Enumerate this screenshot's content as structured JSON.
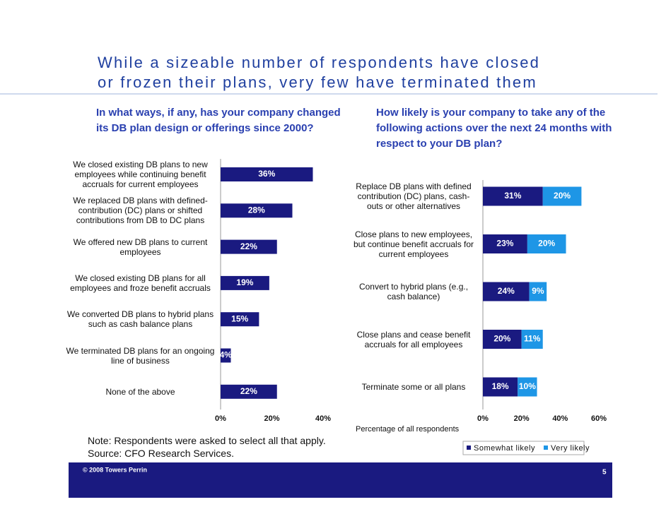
{
  "title": [
    "While a sizeable number of respondents have closed",
    "or frozen their plans, very few have terminated them"
  ],
  "chart_data": [
    {
      "type": "bar",
      "subtitle": "In what ways, if any, has your company changed its DB plan design or offerings since 2000?",
      "categories": [
        "We closed existing DB plans to new employees while continuing benefit accruals for current employees",
        "We replaced DB plans with defined-contribution (DC) plans or shifted contributions from DB to DC plans",
        "We offered new DB plans to current employees",
        "We closed existing DB plans for all employees and froze benefit accruals",
        "We converted DB plans to hybrid plans such as cash balance plans",
        "We terminated DB plans for an ongoing line of business",
        "None of the above"
      ],
      "values": [
        36,
        28,
        22,
        19,
        15,
        4,
        22
      ],
      "value_labels": [
        "36%",
        "28%",
        "22%",
        "19%",
        "15%",
        "4%",
        "22%"
      ],
      "color": "#1a1a80",
      "xlim": [
        0,
        40
      ],
      "xticks": [
        {
          "value": 0,
          "label": "0%"
        },
        {
          "value": 20,
          "label": "20%"
        },
        {
          "value": 40,
          "label": "40%"
        }
      ]
    },
    {
      "type": "stacked_bar",
      "subtitle": "How likely is your company to take any of the following actions over the next 24 months with respect to your DB plan?",
      "categories": [
        "Replace DB plans with defined contribution (DC) plans, cash-outs or other alternatives",
        "Close plans to new employees, but continue benefit accruals for current employees",
        "Convert to hybrid plans (e.g., cash balance)",
        "Close plans and cease benefit accruals for all employees",
        "Terminate some or all plans"
      ],
      "series": [
        {
          "name": "Somewhat likely",
          "color": "#1a1a80",
          "values": [
            31,
            23,
            24,
            20,
            18
          ],
          "value_labels": [
            "31%",
            "23%",
            "24%",
            "20%",
            "18%"
          ]
        },
        {
          "name": "Very likely",
          "color": "#1e96e6",
          "values": [
            20,
            20,
            9,
            11,
            10
          ],
          "value_labels": [
            "20%",
            "20%",
            "9%",
            "11%",
            "10%"
          ]
        }
      ],
      "xlim": [
        0,
        60
      ],
      "xticks": [
        {
          "value": 0,
          "label": "0%"
        },
        {
          "value": 20,
          "label": "20%"
        },
        {
          "value": 40,
          "label": "40%"
        },
        {
          "value": 60,
          "label": "60%"
        }
      ],
      "xlabel": "Percentage of all respondents"
    }
  ],
  "notes": [
    "Note: Respondents were asked to select all that apply.",
    "Source: CFO Research Services."
  ],
  "footer": {
    "copyright": "© 2008 Towers Perrin",
    "page": 5
  }
}
